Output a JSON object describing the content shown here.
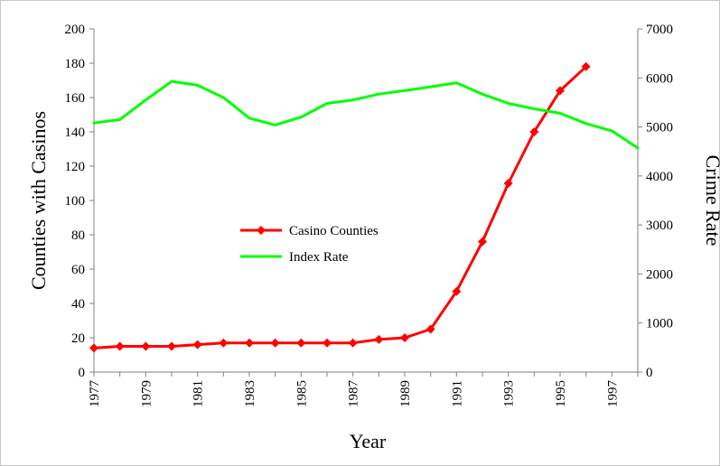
{
  "chart_data": {
    "type": "line",
    "xlabel": "Year",
    "ylabel": "Counties with Casinos",
    "y2label": "Crime Rate",
    "xlim": [
      1977,
      1998
    ],
    "ylim": [
      0,
      200
    ],
    "y2lim": [
      0,
      7000
    ],
    "x_ticks": [
      "1977",
      "1979",
      "1981",
      "1983",
      "1985",
      "1987",
      "1989",
      "1991",
      "1993",
      "1995",
      "1997"
    ],
    "y_ticks": [
      "0",
      "20",
      "40",
      "60",
      "80",
      "100",
      "120",
      "140",
      "160",
      "180",
      "200"
    ],
    "y2_ticks": [
      "0",
      "1000",
      "2000",
      "3000",
      "4000",
      "5000",
      "6000",
      "7000"
    ],
    "grid": false,
    "legend_position": "center-left",
    "series": [
      {
        "name": "Casino Counties",
        "axis": "left",
        "color": "#ff0000",
        "marker": "diamond",
        "x": [
          1977,
          1978,
          1979,
          1980,
          1981,
          1982,
          1983,
          1984,
          1985,
          1986,
          1987,
          1988,
          1989,
          1990,
          1991,
          1992,
          1993,
          1994,
          1995,
          1996
        ],
        "values": [
          14,
          15,
          15,
          15,
          16,
          17,
          17,
          17,
          17,
          17,
          17,
          19,
          20,
          25,
          47,
          76,
          110,
          140,
          164,
          178
        ]
      },
      {
        "name": "Index Rate",
        "axis": "right",
        "color": "#00ff00",
        "marker": "none",
        "x": [
          1977,
          1978,
          1979,
          1980,
          1981,
          1982,
          1983,
          1984,
          1985,
          1986,
          1987,
          1988,
          1989,
          1990,
          1991,
          1992,
          1993,
          1994,
          1995,
          1996,
          1997,
          1998
        ],
        "values": [
          5080,
          5150,
          5550,
          5930,
          5850,
          5600,
          5180,
          5040,
          5200,
          5480,
          5550,
          5670,
          5740,
          5820,
          5900,
          5670,
          5480,
          5370,
          5280,
          5070,
          4920,
          4570
        ]
      }
    ]
  }
}
